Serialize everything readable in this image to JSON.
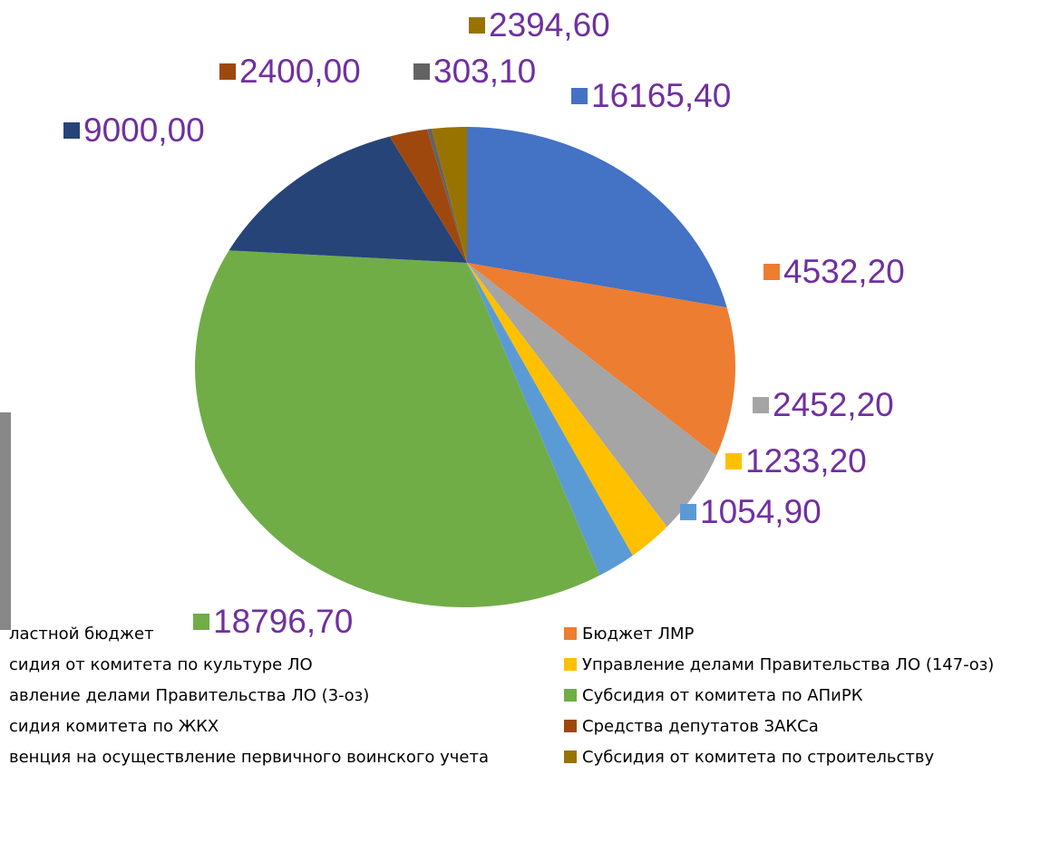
{
  "chart_data": {
    "type": "pie",
    "categories": [
      "ластной бюджет",
      "Бюджет ЛМР",
      "сидия от комитета по культуре ЛО",
      "Управление делами Правительства ЛО (147-оз)",
      "авление делами Правительства ЛО (3-оз)",
      "Субсидия от комитета по АПиРК",
      "сидия комитета по ЖКХ",
      "Средства депутатов ЗАКСа",
      "венция на осуществление первичного воинского учета",
      "Субсидия от комитета по строительству"
    ],
    "values": [
      16165.4,
      4532.2,
      2452.2,
      1233.2,
      1054.9,
      18796.7,
      9000,
      2400,
      303.1,
      2394.6
    ],
    "value_labels": [
      "16165,40",
      "4532,20",
      "2452,20",
      "1233,20",
      "1054,90",
      "18796,70",
      "9000,00",
      "2400,00",
      "303,10",
      "2394,60"
    ],
    "colors": [
      "#4472c4",
      "#ed7d31",
      "#a5a5a5",
      "#ffc000",
      "#5b9bd5",
      "#70ad47",
      "#264478",
      "#9e480e",
      "#636363",
      "#997300"
    ],
    "label_color": "#7030a0"
  }
}
